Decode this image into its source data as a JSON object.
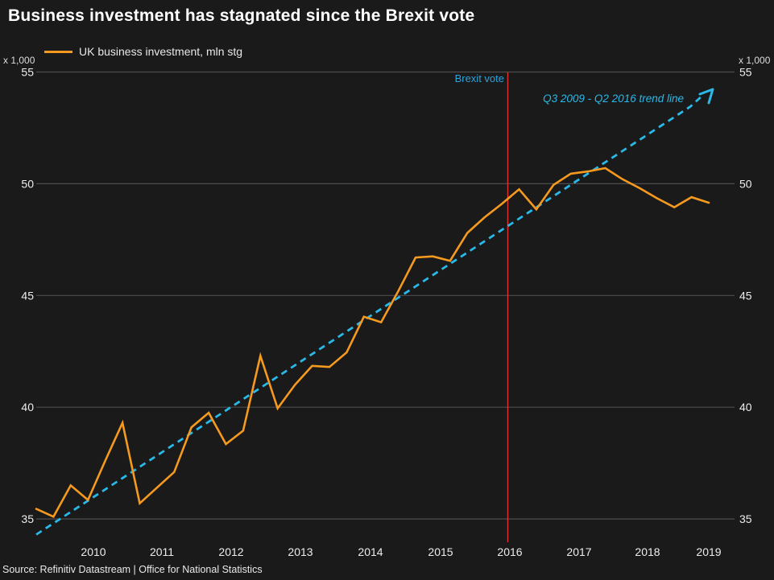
{
  "title": "Business investment has stagnated since the Brexit vote",
  "legend": {
    "label": "UK business investment, mln stg"
  },
  "axis": {
    "y_unit": "x 1,000",
    "y_ticks": [
      "55",
      "50",
      "45",
      "40",
      "35"
    ],
    "x_ticks": [
      "2010",
      "2011",
      "2012",
      "2013",
      "2014",
      "2015",
      "2016",
      "2017",
      "2018",
      "2019"
    ]
  },
  "annotations": {
    "event_label": "Brexit vote",
    "trend_label": "Q3 2009 - Q2 2016 trend line"
  },
  "source": "Source: Refinitiv Datastream | Office for National Statistics",
  "colors": {
    "background": "#1a1a1a",
    "series_line": "#f59a1f",
    "trend_line": "#29b8e8",
    "event_line": "#e03232",
    "event_label_text": "#2da3dd",
    "grid": "#4d4d4d",
    "tick_text": "#ededed",
    "title_text": "#ffffff"
  },
  "chart_data": {
    "type": "line",
    "title": "Business investment has stagnated since the Brexit vote",
    "ylabel": "UK business investment, x 1,000 mln stg",
    "xlabel": "",
    "ylim": [
      34,
      55
    ],
    "y_ticks": [
      55,
      50,
      45,
      40,
      35
    ],
    "grid": "horizontal-only",
    "legend_position": "top-left",
    "x": [
      "Q2 2009",
      "Q3 2009",
      "Q4 2009",
      "Q1 2010",
      "Q2 2010",
      "Q3 2010",
      "Q4 2010",
      "Q1 2011",
      "Q2 2011",
      "Q3 2011",
      "Q4 2011",
      "Q1 2012",
      "Q2 2012",
      "Q3 2012",
      "Q4 2012",
      "Q1 2013",
      "Q2 2013",
      "Q3 2013",
      "Q4 2013",
      "Q1 2014",
      "Q2 2014",
      "Q3 2014",
      "Q4 2014",
      "Q1 2015",
      "Q2 2015",
      "Q3 2015",
      "Q4 2015",
      "Q1 2016",
      "Q2 2016",
      "Q3 2016",
      "Q4 2016",
      "Q1 2017",
      "Q2 2017",
      "Q3 2017",
      "Q4 2017",
      "Q1 2018",
      "Q2 2018",
      "Q3 2018",
      "Q4 2018",
      "Q1 2019"
    ],
    "series": [
      {
        "name": "UK business investment, mln stg",
        "color": "#f59a1f",
        "values": [
          35.45,
          35.1,
          36.5,
          35.85,
          37.6,
          39.3,
          35.7,
          36.4,
          37.1,
          39.1,
          39.75,
          38.35,
          38.95,
          42.3,
          39.95,
          41.0,
          41.85,
          41.8,
          42.45,
          44.05,
          43.8,
          45.2,
          46.7,
          46.75,
          46.55,
          47.8,
          48.5,
          49.1,
          49.75,
          48.85,
          49.95,
          50.45,
          50.55,
          50.7,
          50.2,
          49.8,
          49.35,
          48.95,
          49.4,
          49.15
        ]
      }
    ],
    "trend": {
      "label": "Q3 2009 - Q2 2016 trend line",
      "color": "#29b8e8",
      "style": "dashed",
      "arrow": true,
      "start_value": 34.3,
      "end_value": 53.45
    },
    "event": {
      "label": "Brexit vote",
      "x": "Q2 2016",
      "color": "#e03232"
    }
  }
}
